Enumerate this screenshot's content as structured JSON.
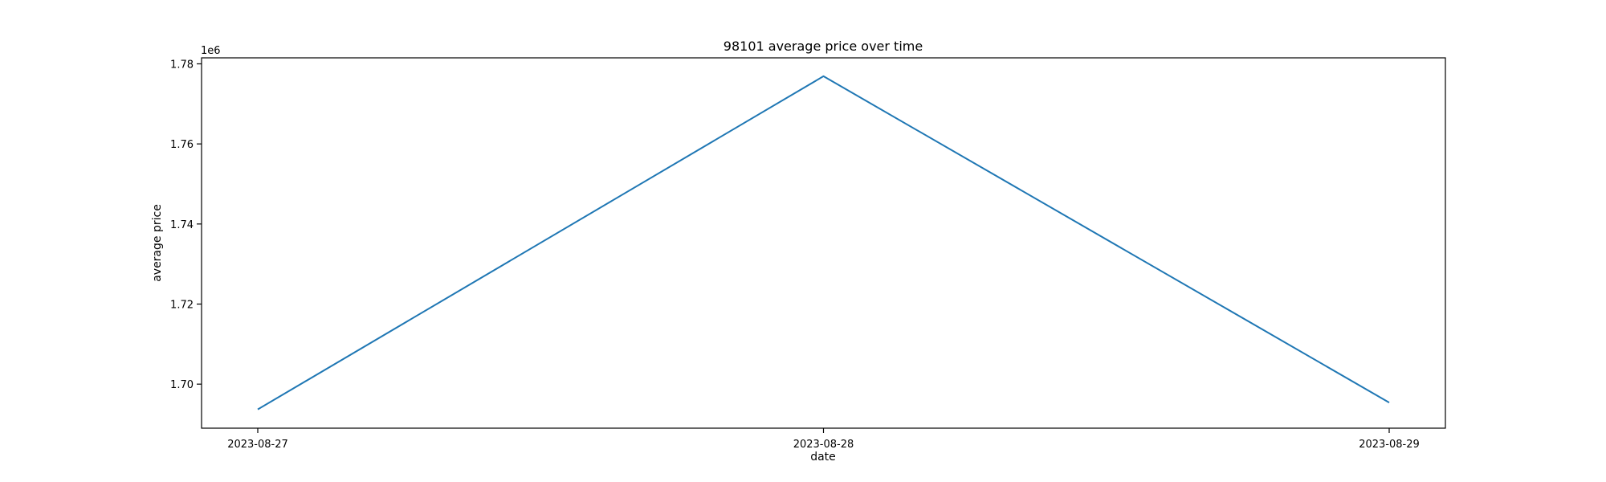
{
  "chart_data": {
    "type": "line",
    "title": "98101 average price over time",
    "xlabel": "date",
    "ylabel": "average price",
    "y_offset_label": "1e6",
    "x": [
      "2023-08-27",
      "2023-08-28",
      "2023-08-29"
    ],
    "x_tick_labels": [
      "2023-08-27",
      "2023-08-28",
      "2023-08-29"
    ],
    "series": [
      {
        "values": [
          1693700,
          1776900,
          1695400
        ],
        "color": "#1f77b4"
      }
    ],
    "ylim": [
      1689000,
      1781500
    ],
    "y_ticks": [
      1700000,
      1720000,
      1740000,
      1760000,
      1780000
    ],
    "y_tick_labels": [
      "1.70",
      "1.72",
      "1.74",
      "1.76",
      "1.78"
    ],
    "grid": false,
    "legend": "none"
  }
}
